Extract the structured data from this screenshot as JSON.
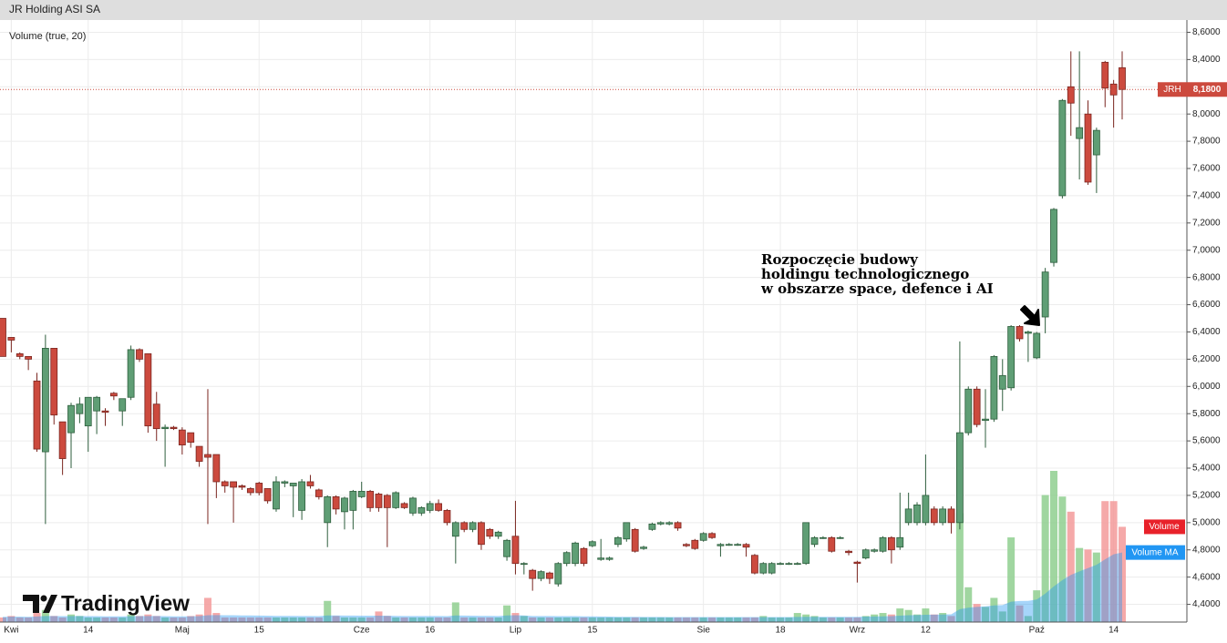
{
  "chart_data": {
    "type": "candlestick",
    "title": "JR Holding ASI SA",
    "indicator": "Volume (true, 20)",
    "annotation": [
      "Rozpoczęcie budowy",
      "holdingu technologicznego",
      "w obszarze space, defence i AI"
    ],
    "logo": "TradingView",
    "symbol": "JRH",
    "last_price": {
      "value": 8.18,
      "label": "8,1800"
    },
    "up_color": "#5f9e75",
    "down_color": "#cc4a3e",
    "grid": true,
    "ylim": [
      4.27,
      8.69
    ],
    "yticks": [
      {
        "value": 4.4,
        "label": "4,4000"
      },
      {
        "value": 4.6,
        "label": "4,6000"
      },
      {
        "value": 4.8,
        "label": "4,8000"
      },
      {
        "value": 5.0,
        "label": "5,0000"
      },
      {
        "value": 5.2,
        "label": "5,2000"
      },
      {
        "value": 5.4,
        "label": "5,4000"
      },
      {
        "value": 5.6,
        "label": "5,6000"
      },
      {
        "value": 5.8,
        "label": "5,8000"
      },
      {
        "value": 6.0,
        "label": "6,0000"
      },
      {
        "value": 6.2,
        "label": "6,2000"
      },
      {
        "value": 6.4,
        "label": "6,4000"
      },
      {
        "value": 6.6,
        "label": "6,6000"
      },
      {
        "value": 6.8,
        "label": "6,8000"
      },
      {
        "value": 7.0,
        "label": "7,0000"
      },
      {
        "value": 7.2,
        "label": "7,2000"
      },
      {
        "value": 7.4,
        "label": "7,4000"
      },
      {
        "value": 7.6,
        "label": "7,6000"
      },
      {
        "value": 7.8,
        "label": "7,8000"
      },
      {
        "value": 8.0,
        "label": "8,0000"
      },
      {
        "value": 8.2,
        "label": "8,2000"
      },
      {
        "value": 8.4,
        "label": "8,4000"
      },
      {
        "value": 8.6,
        "label": "8,6000"
      }
    ],
    "categories": [
      null,
      "Kwi",
      null,
      null,
      null,
      null,
      null,
      null,
      null,
      null,
      "14",
      null,
      null,
      null,
      null,
      null,
      null,
      null,
      null,
      null,
      null,
      "Maj",
      null,
      null,
      null,
      null,
      null,
      null,
      null,
      null,
      "15",
      null,
      null,
      null,
      null,
      null,
      null,
      null,
      null,
      null,
      null,
      null,
      "Cze",
      null,
      null,
      null,
      null,
      null,
      null,
      null,
      "16",
      null,
      null,
      null,
      null,
      null,
      null,
      null,
      null,
      null,
      "Lip",
      null,
      null,
      null,
      null,
      null,
      null,
      null,
      null,
      "15",
      null,
      null,
      null,
      null,
      null,
      null,
      null,
      null,
      null,
      null,
      null,
      null,
      "Sie",
      null,
      null,
      null,
      null,
      null,
      null,
      null,
      null,
      "18",
      null,
      null,
      null,
      null,
      null,
      null,
      null,
      null,
      "Wrz",
      null,
      null,
      null,
      null,
      null,
      null,
      null,
      "12",
      null,
      null,
      null,
      null,
      null,
      null,
      null,
      null,
      null,
      null,
      null,
      null,
      "Paź",
      null,
      null,
      null,
      null,
      null,
      null,
      null,
      null,
      "14",
      null
    ],
    "open": [
      6.5,
      6.36,
      6.24,
      6.22,
      6.04,
      5.52,
      6.28,
      5.74,
      5.66,
      5.8,
      5.71,
      5.82,
      5.82,
      5.95,
      5.82,
      5.92,
      6.27,
      6.24,
      5.87,
      5.69,
      5.7,
      5.68,
      5.66,
      5.56,
      5.5,
      5.5,
      5.3,
      5.3,
      5.27,
      5.25,
      5.29,
      5.25,
      5.1,
      5.29,
      5.27,
      5.09,
      5.3,
      5.24,
      5.0,
      5.19,
      5.08,
      5.09,
      5.19,
      5.23,
      5.21,
      5.2,
      5.11,
      5.14,
      5.07,
      5.07,
      5.09,
      5.14,
      5.09,
      4.9,
      5.0,
      4.95,
      5.0,
      4.95,
      4.9,
      4.75,
      4.9,
      4.7,
      4.65,
      4.59,
      4.63,
      4.55,
      4.7,
      4.7,
      4.81,
      4.83,
      4.73,
      4.73,
      4.84,
      4.88,
      4.95,
      4.81,
      4.95,
      4.99,
      4.99,
      5.0,
      4.84,
      4.87,
      4.87,
      4.92,
      4.83,
      4.84,
      4.84,
      4.84,
      4.76,
      4.63,
      4.63,
      4.7,
      4.7,
      4.7,
      4.7,
      4.84,
      4.89,
      4.89,
      4.89,
      4.79,
      4.71,
      4.74,
      4.79,
      4.79,
      4.89,
      4.82,
      5.0,
      5.0,
      5.0,
      5.1,
      5.0,
      5.1,
      5.0,
      5.66,
      5.98,
      5.75,
      5.76,
      5.98,
      5.99,
      6.44,
      6.39,
      6.21,
      6.51,
      6.91,
      7.4,
      8.2,
      7.82,
      8.0,
      7.7,
      8.38,
      8.22,
      8.34
    ],
    "high": [
      6.5,
      6.36,
      6.25,
      6.22,
      6.1,
      6.38,
      6.28,
      5.74,
      5.88,
      5.92,
      5.92,
      5.93,
      5.84,
      5.96,
      5.91,
      6.3,
      6.28,
      6.24,
      5.96,
      5.72,
      5.71,
      5.7,
      5.66,
      5.56,
      5.98,
      5.5,
      5.31,
      5.3,
      5.28,
      5.26,
      5.3,
      5.25,
      5.34,
      5.31,
      5.29,
      5.32,
      5.35,
      5.25,
      5.2,
      5.2,
      5.19,
      5.24,
      5.3,
      5.24,
      5.22,
      5.21,
      5.23,
      5.15,
      5.19,
      5.12,
      5.16,
      5.17,
      5.1,
      5.01,
      5.01,
      5.01,
      5.01,
      4.96,
      4.94,
      4.88,
      5.16,
      4.71,
      4.66,
      4.65,
      4.64,
      4.71,
      4.79,
      4.86,
      4.82,
      4.87,
      4.88,
      4.75,
      4.9,
      5.0,
      4.96,
      4.83,
      5.0,
      5.01,
      5.01,
      5.01,
      4.85,
      4.88,
      4.93,
      4.93,
      4.85,
      4.85,
      4.85,
      4.85,
      4.77,
      4.71,
      4.71,
      4.71,
      4.71,
      4.71,
      5.0,
      4.9,
      4.9,
      4.9,
      4.9,
      4.8,
      4.72,
      4.81,
      4.81,
      4.9,
      4.9,
      5.22,
      5.22,
      5.15,
      5.5,
      5.12,
      5.12,
      5.12,
      6.33,
      6.0,
      6.0,
      5.98,
      6.23,
      6.2,
      6.45,
      6.45,
      6.41,
      6.4,
      6.87,
      7.31,
      8.11,
      8.46,
      8.46,
      8.1,
      7.9,
      8.39,
      8.25,
      8.46
    ],
    "low": [
      6.22,
      6.25,
      6.2,
      6.12,
      5.52,
      4.99,
      5.72,
      5.35,
      5.4,
      5.73,
      5.52,
      5.65,
      5.71,
      5.9,
      5.71,
      5.9,
      6.18,
      5.66,
      5.6,
      5.41,
      5.68,
      5.5,
      5.55,
      5.41,
      4.99,
      5.18,
      5.22,
      5.0,
      5.24,
      5.2,
      5.2,
      5.14,
      5.08,
      5.26,
      5.04,
      5.02,
      5.25,
      5.17,
      4.82,
      5.06,
      4.95,
      4.95,
      5.18,
      5.08,
      5.08,
      4.82,
      5.1,
      5.1,
      5.05,
      5.05,
      5.07,
      5.08,
      4.98,
      4.7,
      4.93,
      4.93,
      4.8,
      4.88,
      4.88,
      4.72,
      4.62,
      4.62,
      4.5,
      4.57,
      4.55,
      4.53,
      4.68,
      4.68,
      4.68,
      4.82,
      4.72,
      4.72,
      4.82,
      4.86,
      4.78,
      4.8,
      4.94,
      4.98,
      4.98,
      4.94,
      4.82,
      4.8,
      4.86,
      4.88,
      4.75,
      4.83,
      4.83,
      4.75,
      4.62,
      4.62,
      4.62,
      4.69,
      4.69,
      4.69,
      4.69,
      4.82,
      4.88,
      4.78,
      4.88,
      4.76,
      4.56,
      4.73,
      4.78,
      4.78,
      4.7,
      4.8,
      4.98,
      4.98,
      4.98,
      4.98,
      4.98,
      4.92,
      4.95,
      5.64,
      5.7,
      5.55,
      5.74,
      5.82,
      5.97,
      6.33,
      6.18,
      6.2,
      6.39,
      6.88,
      7.38,
      7.84,
      7.52,
      7.48,
      7.42,
      8.05,
      7.9,
      7.96
    ],
    "close": [
      6.22,
      6.34,
      6.22,
      6.2,
      5.54,
      6.28,
      5.79,
      5.47,
      5.86,
      5.87,
      5.92,
      5.92,
      5.81,
      5.93,
      5.91,
      6.27,
      6.2,
      5.71,
      5.69,
      5.7,
      5.69,
      5.57,
      5.59,
      5.45,
      5.48,
      5.3,
      5.27,
      5.26,
      5.26,
      5.22,
      5.22,
      5.16,
      5.3,
      5.3,
      5.29,
      5.3,
      5.27,
      5.19,
      5.19,
      5.1,
      5.18,
      5.23,
      5.23,
      5.11,
      5.11,
      5.11,
      5.22,
      5.11,
      5.18,
      5.11,
      5.14,
      5.09,
      5.0,
      5.0,
      4.95,
      5.0,
      4.84,
      4.9,
      4.93,
      4.87,
      4.7,
      4.7,
      4.59,
      4.64,
      4.59,
      4.7,
      4.78,
      4.85,
      4.7,
      4.86,
      4.74,
      4.74,
      4.89,
      5.0,
      4.79,
      4.82,
      4.99,
      5.0,
      5.0,
      4.96,
      4.83,
      4.81,
      4.92,
      4.89,
      4.84,
      4.84,
      4.84,
      4.82,
      4.63,
      4.7,
      4.7,
      4.7,
      4.7,
      4.7,
      5.0,
      4.89,
      4.89,
      4.79,
      4.89,
      4.78,
      4.7,
      4.8,
      4.8,
      4.89,
      4.8,
      4.89,
      5.1,
      5.13,
      5.2,
      5.0,
      5.1,
      5.0,
      5.66,
      5.98,
      5.72,
      5.76,
      6.22,
      6.08,
      6.44,
      6.35,
      6.4,
      6.39,
      6.84,
      7.3,
      8.1,
      8.08,
      7.9,
      7.5,
      7.88,
      8.19,
      8.14,
      8.18
    ],
    "volume": {
      "name": "Volume",
      "color": "#e8212a",
      "up_color": "#8fcf8f",
      "down_color": "#f39a9a",
      "values": [
        3,
        4,
        3,
        3,
        6,
        8,
        4,
        3,
        5,
        4,
        3,
        3,
        3,
        3,
        3,
        5,
        4,
        5,
        4,
        3,
        3,
        3,
        4,
        5,
        16,
        6,
        3,
        3,
        3,
        3,
        3,
        3,
        3,
        3,
        3,
        3,
        3,
        3,
        14,
        4,
        3,
        3,
        3,
        3,
        7,
        4,
        3,
        3,
        3,
        3,
        3,
        3,
        3,
        13,
        3,
        3,
        3,
        3,
        3,
        11,
        6,
        4,
        3,
        3,
        3,
        3,
        3,
        3,
        3,
        3,
        3,
        3,
        3,
        3,
        3,
        3,
        3,
        3,
        3,
        3,
        3,
        3,
        3,
        3,
        3,
        3,
        3,
        3,
        3,
        4,
        3,
        3,
        3,
        6,
        5,
        4,
        3,
        3,
        3,
        3,
        3,
        4,
        5,
        6,
        5,
        9,
        8,
        5,
        9,
        5,
        6,
        4,
        72,
        23,
        12,
        10,
        16,
        7,
        56,
        11,
        4,
        21,
        84,
        100,
        83,
        73,
        49,
        48,
        46,
        80,
        80,
        63
      ]
    },
    "volume_ma": {
      "name": "Volume MA",
      "color": "#2196f3",
      "values": [
        3.5,
        3.6,
        3.6,
        3.5,
        3.7,
        4.0,
        4.0,
        3.9,
        4.0,
        4.0,
        3.9,
        3.9,
        3.8,
        3.8,
        3.8,
        3.9,
        3.9,
        4.0,
        4.0,
        3.9,
        3.8,
        3.8,
        3.8,
        3.9,
        4.5,
        4.6,
        4.5,
        4.5,
        4.4,
        4.4,
        4.3,
        4.2,
        4.1,
        4.1,
        4.1,
        4.0,
        4.0,
        3.9,
        4.4,
        4.4,
        4.3,
        4.3,
        4.2,
        4.2,
        4.2,
        4.2,
        4.1,
        4.0,
        4.0,
        4.0,
        4.0,
        4.0,
        3.9,
        4.4,
        4.3,
        4.2,
        4.1,
        4.1,
        4.0,
        4.4,
        4.5,
        4.4,
        4.0,
        4.0,
        4.0,
        3.9,
        3.9,
        3.9,
        3.8,
        3.8,
        3.7,
        3.6,
        3.5,
        3.5,
        3.5,
        3.4,
        3.4,
        3.4,
        3.3,
        3.3,
        3.3,
        3.3,
        3.3,
        3.3,
        3.3,
        3.3,
        3.3,
        3.3,
        3.3,
        3.3,
        3.3,
        3.3,
        3.3,
        3.4,
        3.5,
        3.5,
        3.5,
        3.5,
        3.5,
        3.5,
        3.5,
        3.6,
        3.7,
        3.8,
        3.9,
        4.2,
        4.5,
        4.6,
        4.8,
        4.9,
        5.0,
        5.1,
        8.5,
        9.5,
        10.0,
        10.4,
        11.0,
        11.2,
        13.5,
        13.9,
        14.0,
        14.9,
        18.8,
        23.6,
        27.7,
        31.2,
        33.5,
        35.7,
        37.9,
        41.5,
        44.8,
        46.0
      ]
    }
  }
}
